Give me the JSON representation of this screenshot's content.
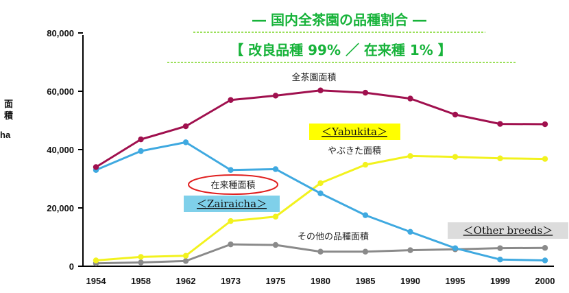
{
  "chart_data": {
    "type": "line",
    "title": "― 国内全茶園の品種割合 ―",
    "subtitle": "【 改良品種 99% ／ 在来種 1% 】",
    "ylabel": "面積",
    "yunit": "ha",
    "ylim": [
      0,
      80000
    ],
    "yticks": [
      "0",
      "20,000",
      "40,000",
      "60,000",
      "80,000"
    ],
    "categories": [
      "1954",
      "1958",
      "1962",
      "1973",
      "1975",
      "1980",
      "1985",
      "1990",
      "1995",
      "1999",
      "2000"
    ],
    "series": [
      {
        "name": "全茶園面積",
        "color": "#a0104e",
        "values": [
          34000,
          43500,
          48000,
          57000,
          58500,
          60300,
          59500,
          57500,
          52000,
          48800,
          48700
        ]
      },
      {
        "name": "やぶきた面積",
        "color": "#f2f21e",
        "values": [
          2000,
          3200,
          3600,
          15500,
          17000,
          28500,
          34800,
          37800,
          37500,
          37000,
          36800
        ]
      },
      {
        "name": "在来種面積",
        "color": "#3fa9e0",
        "values": [
          33000,
          39500,
          42500,
          33000,
          33300,
          25000,
          17500,
          11800,
          6200,
          2300,
          2000
        ]
      },
      {
        "name": "その他の品種面積",
        "color": "#8a8a8a",
        "values": [
          1000,
          1300,
          1800,
          7500,
          7300,
          5000,
          5000,
          5500,
          5800,
          6200,
          6300
        ]
      }
    ],
    "annotations": {
      "yabukita_en": "＜Yabukita＞",
      "zairaicha_en": "＜Zairaicha＞",
      "other_en": "＜Other breeds＞"
    },
    "grid": false,
    "colors": {
      "title": "#17b33a",
      "yabukita_box": "#ffff00",
      "zairaicha_box": "#7fd0ea",
      "other_box": "#dcdcdc",
      "ellipse": "#e02020"
    }
  }
}
